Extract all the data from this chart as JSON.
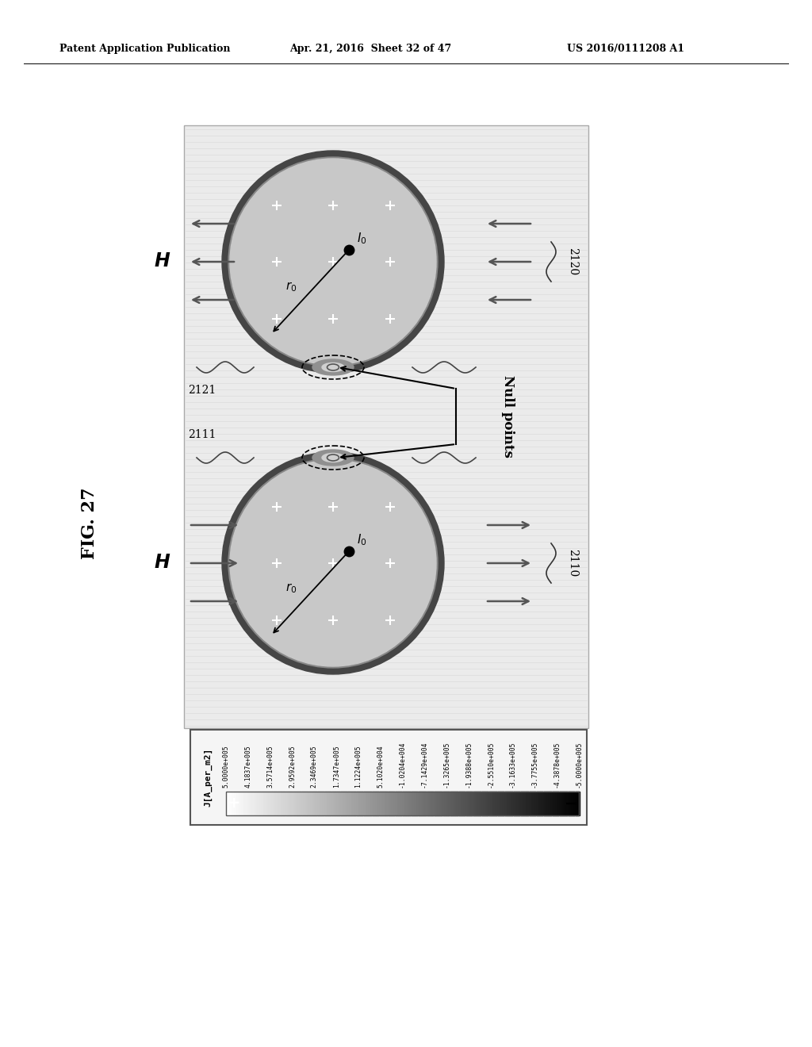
{
  "title_left": "Patent Application Publication",
  "title_mid": "Apr. 21, 2016  Sheet 32 of 47",
  "title_right": "US 2016/0111208 A1",
  "fig_label": "FIG. 27",
  "bg_color": "#ffffff",
  "label_2120": "2120",
  "label_2110": "2110",
  "label_2121": "2121",
  "label_2111": "2111",
  "null_points_text": "Null points",
  "colorbar_label": "J[A_per_m2]",
  "colorbar_values": [
    "5.0000e+005",
    "4.1837e+005",
    "3.5714e+005",
    "2.9592e+005",
    "2.3469e+005",
    "1.7347e+005",
    "1.1224e+005",
    "5.1020e+004",
    "-1.0204e+004",
    "-7.1429e+004",
    "-1.3265e+005",
    "-1.9388e+005",
    "-2.5510e+005",
    "-3.1633e+005",
    "-3.7755e+005",
    "-4.3878e+005",
    "-5.0000e+005"
  ]
}
